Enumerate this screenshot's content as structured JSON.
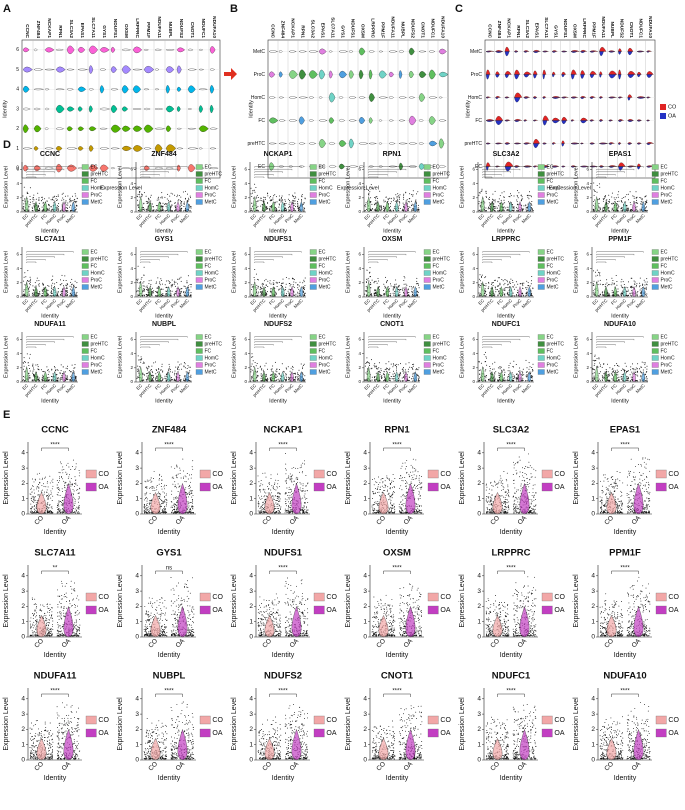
{
  "figure": {
    "genes": [
      "CCNC",
      "ZNF484",
      "NCKAP1",
      "RPN1",
      "SLC3A2",
      "EPAS1",
      "SLC7A11",
      "GYS1",
      "NDUFS1",
      "OXSM",
      "LRPPRC",
      "PPM1F",
      "NDUFA11",
      "NUBPL",
      "NDUFS2",
      "CNOT1",
      "NDUFC1",
      "NDUFA10"
    ],
    "identities": [
      "EC",
      "preHTC",
      "FC",
      "HomC",
      "ProC",
      "MetC"
    ],
    "identity_colors": [
      "#86d486",
      "#3f8f3f",
      "#5fbf5f",
      "#6fd3c6",
      "#e07fe0",
      "#4f9fe0"
    ],
    "groups": [
      "CO",
      "OA"
    ],
    "axis_labels": {
      "x": "Identity",
      "y": "Expression Level"
    },
    "panel_a": {
      "label": "A",
      "clusters": [
        "0",
        "1",
        "2",
        "3",
        "4",
        "5",
        "6"
      ],
      "x_label": "Expression Level",
      "y_label": "Identity"
    },
    "panel_b": {
      "label": "B",
      "x_label": "Expression Level",
      "y_label": "Identity"
    },
    "panel_c": {
      "label": "C",
      "x_label": "Expression Level",
      "y_label": "Identity",
      "group_colors": [
        "#e02424",
        "#2432c4"
      ]
    },
    "panel_d": {
      "label": "D",
      "yticks": [
        "0",
        "2",
        "4",
        "6"
      ]
    },
    "panel_e": {
      "label": "E",
      "yticks": [
        "0",
        "1",
        "2",
        "3",
        "4"
      ],
      "group_colors": [
        "#f2a7a7",
        "#c23ec2"
      ],
      "significance": [
        "****",
        "****",
        "****",
        "****",
        "****",
        "****",
        "**",
        "ns",
        "****",
        "****",
        "****",
        "****",
        "****",
        "****",
        "****",
        "****",
        "****",
        "****"
      ]
    }
  }
}
